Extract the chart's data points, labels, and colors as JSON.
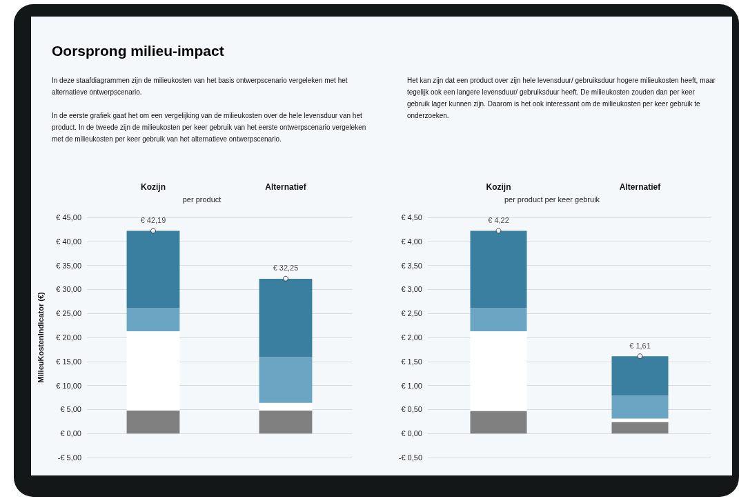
{
  "chart_data": [
    {
      "type": "bar",
      "stacked": true,
      "title": "Oorsprong milieu-impact",
      "subtitle": "per product",
      "ylabel": "MilieuKostenIndicator (€)",
      "annotations": [
        "In deze staafdiagrammen zijn de milieukosten van het basis ontwerpscenario vergeleken met het alternatieve ontwerpscenario.",
        "In de eerste grafiek gaat het om een vergelijking van de milieukosten over de hele levensduur van het product. In de tweede zijn de milieukosten per keer gebruik van het eerste ontwerpscenario vergeleken met de milieukosten per keer gebruik van het alternatieve ontwerpscenario."
      ],
      "categories": [
        "Kozijn",
        "Alternatief"
      ],
      "series": [
        {
          "color": "#808080",
          "values": [
            4.8,
            4.8
          ]
        },
        {
          "color": "#ffffff",
          "values": [
            16.5,
            1.6
          ]
        },
        {
          "color": "#6aa5c3",
          "values": [
            4.8,
            9.5
          ]
        },
        {
          "color": "#3a7fa0",
          "values": [
            16.1,
            16.3
          ]
        },
        {
          "type": "scatter",
          "color": "#ffffff",
          "values": [
            42.19,
            32.25
          ],
          "value_labels": [
            "€ 42,19",
            "€ 32,25"
          ]
        }
      ],
      "marker": "circle",
      "ylim": [
        -5,
        45
      ],
      "yticks": [
        {
          "value": -5,
          "label": "-€ 5,00"
        },
        {
          "value": 0,
          "label": "€ 0,00"
        },
        {
          "value": 5,
          "label": "€ 5,00"
        },
        {
          "value": 10,
          "label": "€ 10,00"
        },
        {
          "value": 15,
          "label": "€ 15,00"
        },
        {
          "value": 20,
          "label": "€ 20,00"
        },
        {
          "value": 25,
          "label": "€ 25,00"
        },
        {
          "value": 30,
          "label": "€ 30,00"
        },
        {
          "value": 35,
          "label": "€ 35,00"
        },
        {
          "value": 40,
          "label": "€ 40,00"
        },
        {
          "value": 45,
          "label": "€ 45,00"
        }
      ],
      "grid": "y"
    },
    {
      "type": "bar",
      "stacked": true,
      "subtitle": "per product per keer gebruik",
      "annotations": [
        "Het kan zijn dat een product over zijn hele levensduur/ gebruiksduur hogere milieukosten heeft, maar tegelijk ook een langere levensduur/ gebruiksduur heeft. De milieukosten zouden dan per keer gebruik lager kunnen zijn. Daarom is het ook interessant om de milieukosten per keer gebruik te onderzoeken."
      ],
      "categories": [
        "Kozijn",
        "Alternatief"
      ],
      "series": [
        {
          "color": "#808080",
          "values": [
            0.47,
            0.24
          ]
        },
        {
          "color": "#ffffff",
          "values": [
            1.66,
            0.07
          ]
        },
        {
          "color": "#6aa5c3",
          "values": [
            0.48,
            0.48
          ]
        },
        {
          "color": "#3a7fa0",
          "values": [
            1.61,
            0.82
          ]
        },
        {
          "type": "scatter",
          "color": "#ffffff",
          "values": [
            4.22,
            1.61
          ],
          "value_labels": [
            "€ 4,22",
            "€ 1,61"
          ]
        }
      ],
      "marker": "circle",
      "ylim": [
        -0.5,
        4.5
      ],
      "yticks": [
        {
          "value": -0.5,
          "label": "-€ 0,50"
        },
        {
          "value": 0,
          "label": "€ 0,00"
        },
        {
          "value": 0.5,
          "label": "€ 0,50"
        },
        {
          "value": 1,
          "label": "€ 1,00"
        },
        {
          "value": 1.5,
          "label": "€ 1,50"
        },
        {
          "value": 2,
          "label": "€ 2,00"
        },
        {
          "value": 2.5,
          "label": "€ 2,50"
        },
        {
          "value": 3,
          "label": "€ 3,00"
        },
        {
          "value": 3.5,
          "label": "€ 3,50"
        },
        {
          "value": 4,
          "label": "€ 4,00"
        },
        {
          "value": 4.5,
          "label": "€ 4,50"
        }
      ],
      "grid": "y"
    }
  ]
}
